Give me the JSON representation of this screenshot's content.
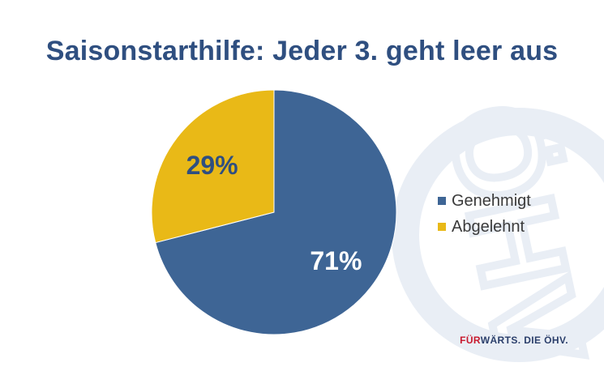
{
  "slide": {
    "title": "Saisonstarthilfe: Jeder 3. geht leer aus",
    "watermark_text": "ÖHV",
    "footer": {
      "part1": "FÜR",
      "part2": "WÄRTS. DIE ÖHV."
    }
  },
  "colors": {
    "genehmigt": "#3e6595",
    "abgelehnt": "#e9b917",
    "title": "#2f4f80",
    "accent_red": "#c8192e"
  },
  "chart_data": {
    "type": "pie",
    "title": "Saisonstarthilfe: Jeder 3. geht leer aus",
    "start": "12 o'clock, clockwise",
    "slices": [
      {
        "label": "Genehmigt",
        "value": 71,
        "display": "71%"
      },
      {
        "label": "Abgelehnt",
        "value": 29,
        "display": "29%"
      }
    ],
    "legend": [
      "Genehmigt",
      "Abgelehnt"
    ],
    "legend_position": "right"
  }
}
